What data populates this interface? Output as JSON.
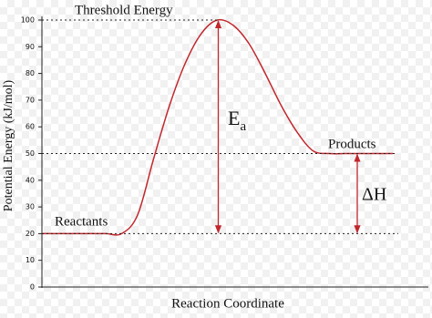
{
  "chart_data": {
    "type": "line",
    "x_label": "Reaction Coordinate",
    "y_label": "Potential Energy (kJ/mol)",
    "categories": [
      null,
      null,
      null,
      null,
      null,
      null,
      null,
      null,
      null,
      null,
      null,
      null,
      null,
      null,
      null,
      null,
      null,
      null,
      null,
      null,
      null,
      null,
      null
    ],
    "series": [
      {
        "color": "#c1272d",
        "values": [
          20,
          20,
          20,
          20,
          20,
          20,
          27,
          48,
          68,
          84,
          95,
          100,
          98,
          91,
          80,
          68,
          58,
          51,
          50,
          50,
          50,
          50,
          50
        ]
      }
    ],
    "ylim": [
      0,
      100
    ],
    "yticks": [
      0,
      10,
      20,
      30,
      40,
      50,
      60,
      70,
      80,
      90,
      100
    ],
    "annotations": {
      "threshold": "Threshold Energy",
      "reactants": "Reactants",
      "products": "Products",
      "activation": {
        "text": "E",
        "subscript": "a"
      },
      "enthalpy": "ΔH"
    }
  }
}
